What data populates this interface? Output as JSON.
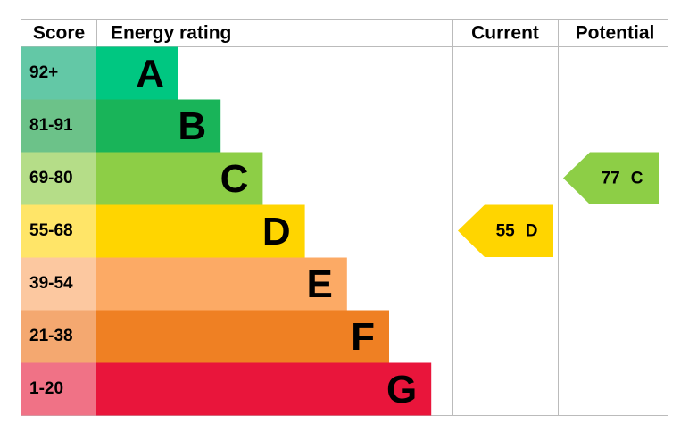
{
  "header": {
    "score": "Score",
    "rating": "Energy rating",
    "current": "Current",
    "potential": "Potential"
  },
  "bands": [
    {
      "score": "92+",
      "letter": "A",
      "color": "#00c781",
      "score_color": "#63c8a6"
    },
    {
      "score": "81-91",
      "letter": "B",
      "color": "#19b459",
      "score_color": "#6cc289"
    },
    {
      "score": "69-80",
      "letter": "C",
      "color": "#8dce46",
      "score_color": "#b5dd88"
    },
    {
      "score": "55-68",
      "letter": "D",
      "color": "#ffd500",
      "score_color": "#ffe568"
    },
    {
      "score": "39-54",
      "letter": "E",
      "color": "#fcaa65",
      "score_color": "#fcc8a0"
    },
    {
      "score": "21-38",
      "letter": "F",
      "color": "#ef8023",
      "score_color": "#f4a870"
    },
    {
      "score": "1-20",
      "letter": "G",
      "color": "#e9153b",
      "score_color": "#f07286"
    }
  ],
  "current": {
    "value": 55,
    "letter": "D",
    "color": "#ffd500"
  },
  "potential": {
    "value": 77,
    "letter": "C",
    "color": "#8dce46"
  }
}
